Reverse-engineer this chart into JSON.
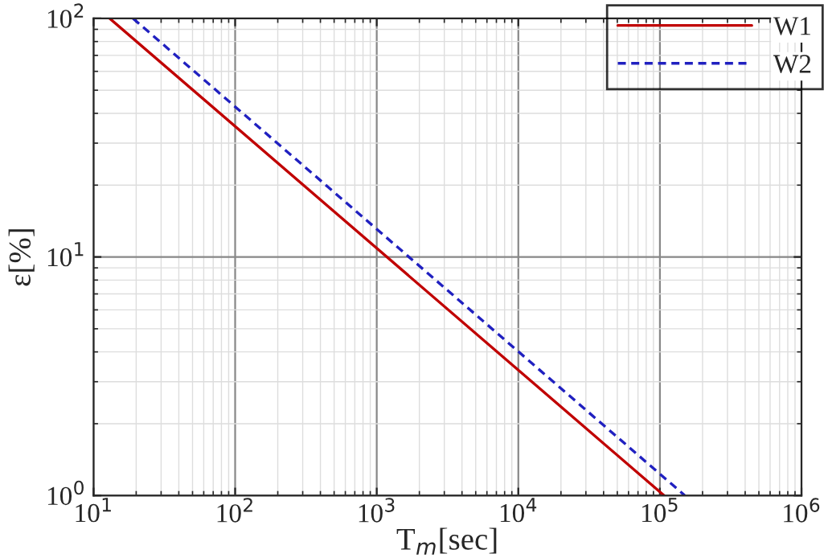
{
  "chart_data": {
    "type": "line",
    "xlabel": "T$_{m}$[sec]",
    "ylabel": "ε[%]",
    "log": "xy",
    "grid": true,
    "legend": "top right",
    "xlim": [
      10,
      1000000
    ],
    "ylim": [
      1,
      100
    ],
    "xticks": [
      {
        "value": 10,
        "label": "10$^{1}$"
      },
      {
        "value": 100,
        "label": "10$^{2}$"
      },
      {
        "value": 1000,
        "label": "10$^{3}$"
      },
      {
        "value": 10000,
        "label": "10$^{4}$"
      },
      {
        "value": 100000,
        "label": "10$^{5}$"
      },
      {
        "value": 1000000,
        "label": "10$^{6}$"
      }
    ],
    "yticks": [
      {
        "value": 1,
        "label": "10$^{0}$"
      },
      {
        "value": 10,
        "label": "10$^{1}$"
      },
      {
        "value": 100,
        "label": "10$^{2}$"
      }
    ],
    "series": [
      {
        "name": "W1",
        "color": "#c00000",
        "line_style": "solid",
        "x": [
          13,
          107000
        ],
        "values": [
          100,
          1
        ]
      },
      {
        "name": "W2",
        "color": "#2020c0",
        "line_style": "dashed",
        "x": [
          19,
          150000
        ],
        "values": [
          100,
          1
        ]
      }
    ]
  }
}
